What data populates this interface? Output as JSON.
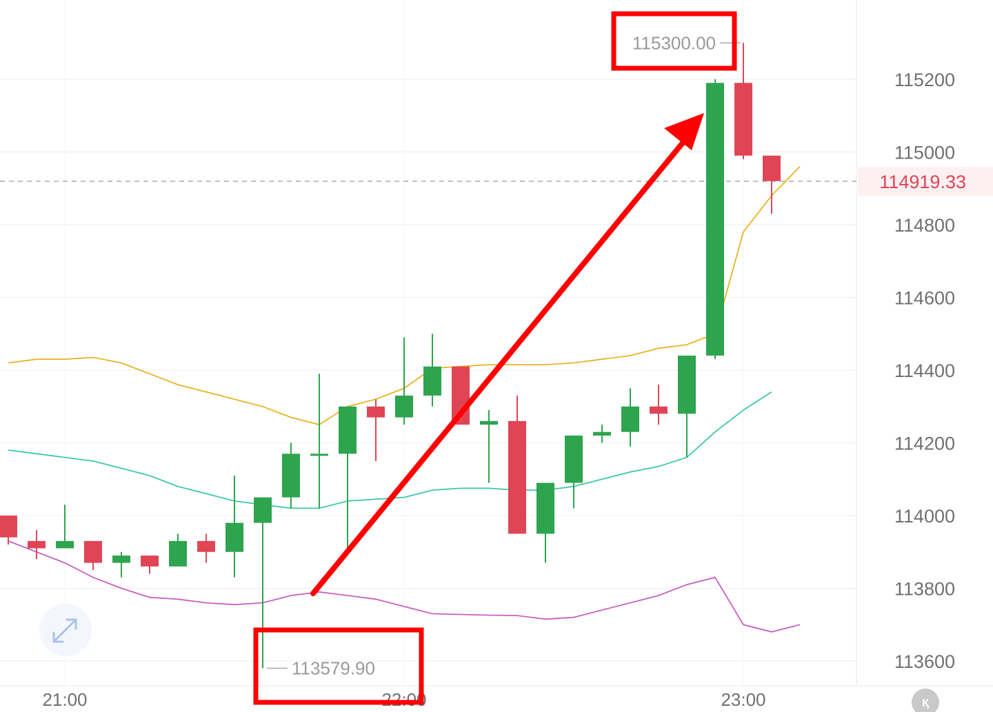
{
  "chart_data": {
    "type": "candlestick",
    "y_ticks": [
      "115200",
      "115000",
      "114800",
      "114600",
      "114400",
      "114200",
      "114000",
      "113800",
      "113600"
    ],
    "x_ticks": [
      "21:00",
      "22:00",
      "23:00"
    ],
    "current_price": "114919.33",
    "high_label": "115300.00",
    "low_label": "113579.90",
    "ylim": [
      113560,
      115400
    ],
    "grid": true,
    "colors": {
      "up": "#2ea44f",
      "down": "#e04556",
      "ma_yellow": "#e6b422",
      "ma_teal": "#3cc9a6",
      "ma_purple": "#c85fc2",
      "annotation": "#ff0000"
    },
    "candles": [
      {
        "o": 114000,
        "h": 114000,
        "l": 113920,
        "c": 113940
      },
      {
        "o": 113930,
        "h": 113960,
        "l": 113880,
        "c": 113910
      },
      {
        "o": 113910,
        "h": 114030,
        "l": 113910,
        "c": 113930
      },
      {
        "o": 113930,
        "h": 113930,
        "l": 113850,
        "c": 113870
      },
      {
        "o": 113870,
        "h": 113900,
        "l": 113830,
        "c": 113890
      },
      {
        "o": 113890,
        "h": 113890,
        "l": 113840,
        "c": 113860
      },
      {
        "o": 113860,
        "h": 113950,
        "l": 113860,
        "c": 113930
      },
      {
        "o": 113930,
        "h": 113950,
        "l": 113870,
        "c": 113900
      },
      {
        "o": 113900,
        "h": 114110,
        "l": 113830,
        "c": 113980
      },
      {
        "o": 113980,
        "h": 114050,
        "l": 113580,
        "c": 114050
      },
      {
        "o": 114050,
        "h": 114200,
        "l": 114020,
        "c": 114170
      },
      {
        "o": 114170,
        "h": 114390,
        "l": 114020,
        "c": 114170
      },
      {
        "o": 114170,
        "h": 114300,
        "l": 113910,
        "c": 114300
      },
      {
        "o": 114300,
        "h": 114320,
        "l": 114150,
        "c": 114270
      },
      {
        "o": 114270,
        "h": 114490,
        "l": 114250,
        "c": 114330
      },
      {
        "o": 114330,
        "h": 114500,
        "l": 114300,
        "c": 114410
      },
      {
        "o": 114410,
        "h": 114410,
        "l": 114250,
        "c": 114250
      },
      {
        "o": 114250,
        "h": 114290,
        "l": 114090,
        "c": 114260
      },
      {
        "o": 114260,
        "h": 114330,
        "l": 113950,
        "c": 113950
      },
      {
        "o": 113950,
        "h": 114090,
        "l": 113870,
        "c": 114090
      },
      {
        "o": 114090,
        "h": 114220,
        "l": 114020,
        "c": 114220
      },
      {
        "o": 114220,
        "h": 114250,
        "l": 114200,
        "c": 114230
      },
      {
        "o": 114230,
        "h": 114350,
        "l": 114190,
        "c": 114300
      },
      {
        "o": 114300,
        "h": 114360,
        "l": 114250,
        "c": 114280
      },
      {
        "o": 114280,
        "h": 114440,
        "l": 114160,
        "c": 114440
      },
      {
        "o": 114440,
        "h": 115200,
        "l": 114430,
        "c": 115190
      },
      {
        "o": 115190,
        "h": 115300,
        "l": 114980,
        "c": 114990
      },
      {
        "o": 114990,
        "h": 114990,
        "l": 114830,
        "c": 114920
      }
    ],
    "series": [
      {
        "values": [
          114420,
          114430,
          114430,
          114435,
          114420,
          114390,
          114360,
          114340,
          114320,
          114300,
          114270,
          114250,
          114300,
          114320,
          114350,
          114405,
          114410,
          114415,
          114415,
          114415,
          114420,
          114430,
          114440,
          114460,
          114470,
          114500,
          114780,
          114880,
          114960
        ]
      },
      {
        "values": [
          114180,
          114170,
          114160,
          114150,
          114130,
          114110,
          114080,
          114060,
          114040,
          114030,
          114020,
          114020,
          114040,
          114045,
          114050,
          114070,
          114075,
          114075,
          114070,
          114070,
          114080,
          114100,
          114120,
          114135,
          114160,
          114230,
          114290,
          114340
        ]
      },
      {
        "values": [
          113930,
          113900,
          113870,
          113830,
          113800,
          113775,
          113770,
          113760,
          113755,
          113760,
          113780,
          113790,
          113780,
          113770,
          113750,
          113730,
          113728,
          113726,
          113725,
          113715,
          113720,
          113740,
          113760,
          113780,
          113810,
          113830,
          113700,
          113680,
          113700
        ]
      }
    ]
  }
}
